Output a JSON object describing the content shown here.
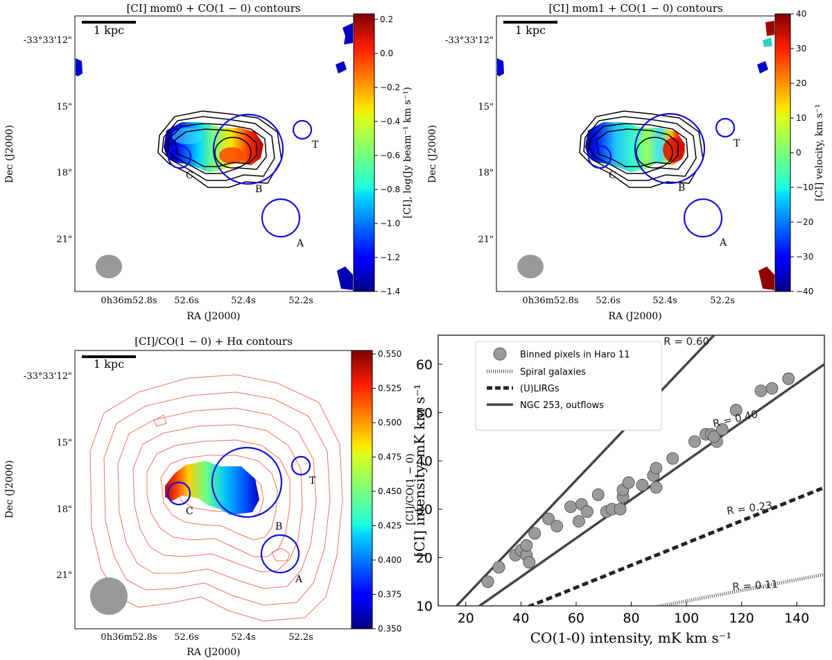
{
  "panel1": {
    "title": "[CI] mom0 + CO(1 − 0) contours",
    "scalebar": "1 kpc",
    "dec_labels": [
      "-33°33'12\"",
      "15\"",
      "18\"",
      "21\""
    ],
    "ra_labels": [
      "0h36m52.8s",
      "52.6s",
      "52.4s",
      "52.2s"
    ],
    "xlabel": "RA (J2000)",
    "ylabel": "Dec (J2000)",
    "regions": [
      "C",
      "B",
      "A",
      "T"
    ],
    "colorbar": {
      "label": "[CI], log(Jy beam⁻¹ km s⁻¹)",
      "ticks": [
        "0.2",
        "0.0",
        "−0.2",
        "−0.4",
        "−0.6",
        "−0.8",
        "−1.0",
        "−1.2",
        "−1.4"
      ]
    }
  },
  "panel2": {
    "title": "[CI] mom1 + CO(1 − 0) contours",
    "scalebar": "1 kpc",
    "dec_labels": [
      "-33°33'12\"",
      "15\"",
      "18\"",
      "21\""
    ],
    "ra_labels": [
      "0h36m52.8s",
      "52.6s",
      "52.4s",
      "52.2s"
    ],
    "xlabel": "RA (J2000)",
    "ylabel": "Dec (J2000)",
    "regions": [
      "C",
      "B",
      "A",
      "T"
    ],
    "colorbar": {
      "label": "[CI] velocity, km s⁻¹",
      "ticks": [
        "40",
        "30",
        "20",
        "10",
        "0",
        "−10",
        "−20",
        "−30",
        "−40"
      ]
    }
  },
  "panel3": {
    "title": "[CI]/CO(1 − 0) + Hα contours",
    "scalebar": "1 kpc",
    "dec_labels": [
      "-33°33'12\"",
      "15\"",
      "18\"",
      "21\""
    ],
    "ra_labels": [
      "0h36m52.8s",
      "52.6s",
      "52.4s",
      "52.2s"
    ],
    "xlabel": "RA (J2000)",
    "ylabel": "Dec (J2000)",
    "regions": [
      "C",
      "B",
      "A",
      "T"
    ],
    "colorbar": {
      "label": "[CI]/CO(1 − 0)",
      "ticks": [
        "0.550",
        "0.525",
        "0.500",
        "0.475",
        "0.450",
        "0.425",
        "0.400",
        "0.375",
        "0.350"
      ]
    }
  },
  "chart_data": {
    "type": "scatter",
    "xlabel": "CO(1-0) intensity, mK km s⁻¹",
    "ylabel": "[CI] intensity, mK km s⁻¹",
    "xlim": [
      10,
      150
    ],
    "ylim": [
      10,
      66
    ],
    "xticks": [
      20,
      40,
      60,
      80,
      100,
      120,
      140
    ],
    "yticks": [
      10,
      20,
      30,
      40,
      50,
      60
    ],
    "points_x": [
      28,
      32,
      38,
      40,
      42,
      42,
      43,
      45,
      50,
      53,
      58,
      61,
      62,
      64,
      68,
      71,
      73,
      76,
      77,
      77,
      79,
      84,
      88,
      89,
      89,
      95,
      103,
      107,
      109,
      111,
      110,
      113,
      118,
      127,
      131,
      137
    ],
    "points_y": [
      15,
      18,
      20.5,
      21.5,
      20.5,
      22.5,
      19,
      25,
      28,
      26.5,
      30.5,
      27.5,
      31,
      29.5,
      33,
      29.5,
      30,
      30,
      32.5,
      34,
      35.5,
      35,
      37,
      38.5,
      34.5,
      40.5,
      44,
      45.5,
      45.5,
      44,
      45,
      46.5,
      50.5,
      54.5,
      55,
      57
    ],
    "lines": [
      {
        "ratio": 0.6,
        "label": "R = 0.60",
        "style": "solid"
      },
      {
        "ratio": 0.4,
        "label": "R = 0.40",
        "style": "solid"
      },
      {
        "ratio": 0.23,
        "label": "R = 0.23",
        "style": "dashed"
      },
      {
        "ratio": 0.11,
        "label": "R = 0.11",
        "style": "dotted"
      }
    ],
    "legend": [
      "Binned pixels in Haro 11",
      "Spiral galaxies",
      "(U)LIRGs",
      "NGC 253, outflows"
    ]
  }
}
